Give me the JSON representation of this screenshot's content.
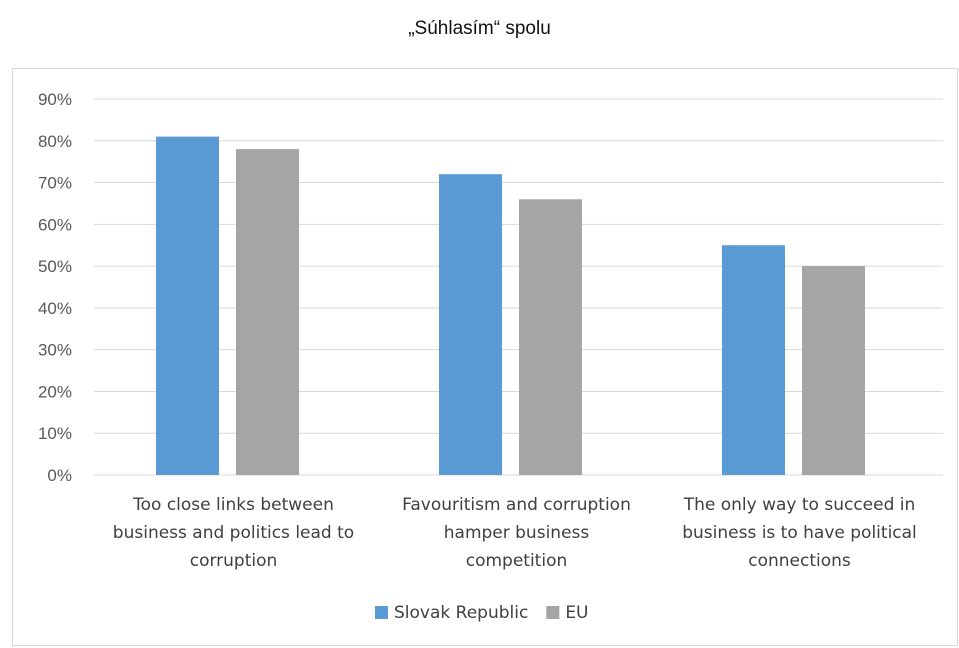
{
  "title": "„Súhlasím“ spolu",
  "chart_data": {
    "type": "bar",
    "categories": [
      [
        "Too close links between",
        "business and politics lead to",
        "corruption"
      ],
      [
        "Favouritism and corruption",
        "hamper business",
        "competition"
      ],
      [
        "The only way to succeed in",
        "business is to have political",
        "connections"
      ]
    ],
    "series": [
      {
        "name": "Slovak Republic",
        "values": [
          81,
          72,
          55
        ],
        "color": "#5b9bd5"
      },
      {
        "name": "EU",
        "values": [
          78,
          66,
          50
        ],
        "color": "#a5a5a5"
      }
    ],
    "yticks": [
      "0%",
      "10%",
      "20%",
      "30%",
      "40%",
      "50%",
      "60%",
      "70%",
      "80%",
      "90%"
    ],
    "ylim": [
      0,
      90
    ],
    "grid": true,
    "legend": "bottom",
    "grid_color": "#d9d9d9"
  }
}
